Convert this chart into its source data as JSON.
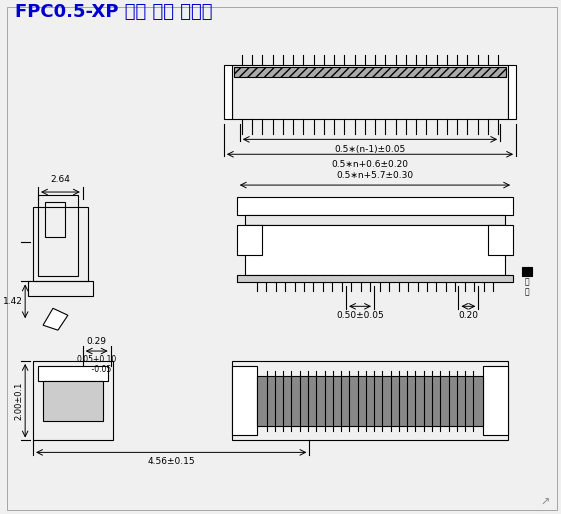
{
  "title": "FPC0.5-XP 立贴 带锁 反脚位",
  "title_color": "#0000cc",
  "bg_color": "#f0f0f0",
  "line_color": "#000000",
  "dim_color": "#000000",
  "annotations": {
    "dim1": "0.5∗(n-1)±0.05",
    "dim2": "0.5∗n+0.6±0.20",
    "dim3": "0.5∗n+5.7±0.30",
    "dim4": "0.50±0.05",
    "dim5": "0.20",
    "dim6": "2.64",
    "dim7": "1.42",
    "dim8": "2.00±0.1",
    "dim9": "4.56±0.15",
    "dim10": "0.29",
    "dim11": "0.05+0.10\n    -0.05"
  },
  "figsize": [
    5.61,
    5.14
  ],
  "dpi": 100
}
